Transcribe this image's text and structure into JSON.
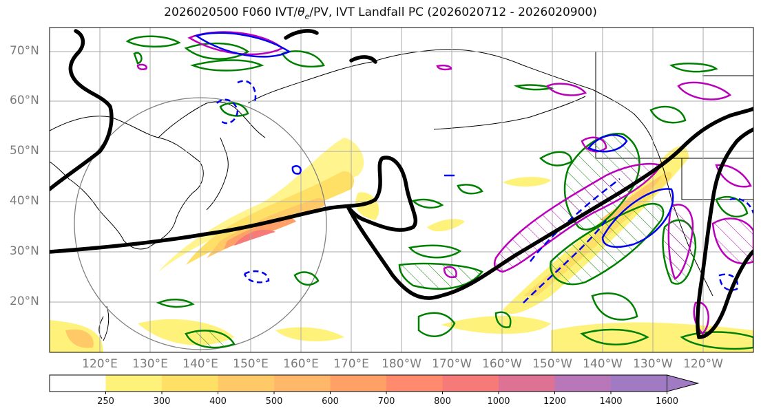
{
  "title_parts": {
    "prefix": "2026020500 F060 IVT/",
    "theta": "θ",
    "sub": "e",
    "suffix": "/PV, IVT Landfall PC (2026020712 - 2026020900)"
  },
  "map": {
    "lat_labels": [
      "70°N",
      "60°N",
      "50°N",
      "40°N",
      "30°N",
      "20°N"
    ],
    "lon_labels": [
      "120°E",
      "130°E",
      "140°E",
      "150°E",
      "160°E",
      "170°E",
      "180°W",
      "170°W",
      "160°W",
      "150°W",
      "140°W",
      "130°W",
      "120°W"
    ],
    "gridlines": true,
    "contour_colors": {
      "pv_thick": "#000000",
      "positive_anomaly": "#008000",
      "theta_e": "#bb00bb",
      "negative_dashed": "#0000ee",
      "circle": "#808080"
    }
  },
  "colorbar": {
    "ticks": [
      "250",
      "300",
      "400",
      "500",
      "600",
      "700",
      "800",
      "1000",
      "1200",
      "1400",
      "1600"
    ],
    "colors": [
      "#ffffff",
      "#fff27a",
      "#ffe066",
      "#ffc968",
      "#ffb86a",
      "#ffa066",
      "#ff8a6e",
      "#f57a78",
      "#de7294",
      "#b777b8",
      "#a07bc4"
    ]
  }
}
